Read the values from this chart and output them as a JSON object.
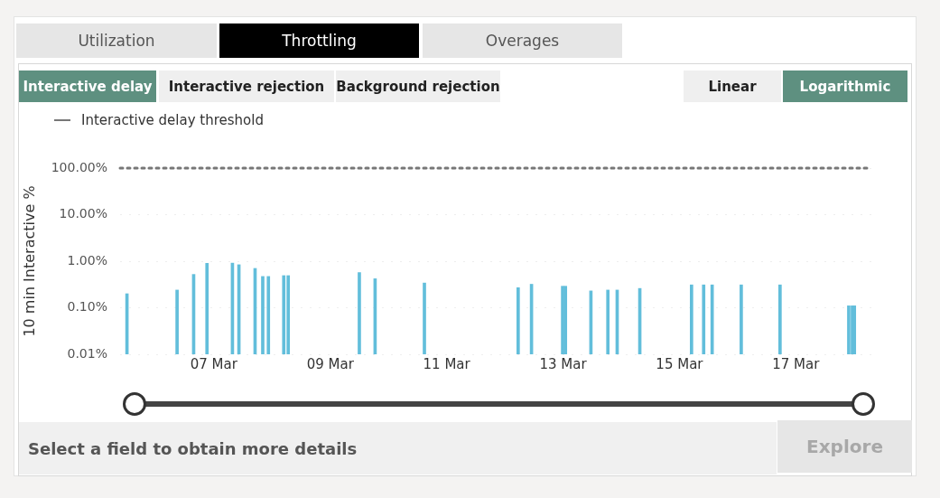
{
  "chart_data": {
    "type": "bar",
    "ylabel": "10 min Interactive %",
    "color": "#62bedb",
    "log": "y",
    "grid": "y",
    "x": [
      "--03-05T12:10",
      "--03-06T08:50",
      "--03-06T15:40",
      "--03-06T21:10",
      "--03-07T07:40",
      "--03-07T10:20",
      "--03-07T17:00",
      "--03-07T20:10",
      "--03-07T22:30",
      "--03-08T04:50",
      "--03-08T06:40",
      "--03-09T12:00",
      "--03-09T18:30",
      "--03-10T14:50",
      "--03-12T05:30",
      "--03-12T11:00",
      "--03-12T23:50",
      "--03-13T01:00",
      "--03-13T11:30",
      "--03-13T18:30",
      "--03-13T22:20",
      "--03-14T07:40",
      "--03-15T05:00",
      "--03-15T10:00",
      "--03-15T13:30",
      "--03-16T01:30",
      "--03-16T17:30",
      "--03-17T21:50",
      "--03-17T23:20",
      "--03-18T00:10"
    ],
    "values": [
      0.2,
      0.24,
      0.52,
      0.9,
      0.91,
      0.84,
      0.7,
      0.47,
      0.47,
      0.49,
      0.49,
      0.57,
      0.42,
      0.34,
      0.27,
      0.32,
      0.29,
      0.29,
      0.23,
      0.24,
      0.24,
      0.26,
      0.31,
      0.31,
      0.31,
      0.31,
      0.31,
      0.11,
      0.11,
      0.11
    ],
    "xlim": [
      "--03-05T09:20",
      "--03-18T07:10"
    ],
    "xticks": [
      {
        "value": "--03-07",
        "label": "07 Mar"
      },
      {
        "value": "--03-09",
        "label": "09 Mar"
      },
      {
        "value": "--03-11",
        "label": "11 Mar"
      },
      {
        "value": "--03-13",
        "label": "13 Mar"
      },
      {
        "value": "--03-15",
        "label": "15 Mar"
      },
      {
        "value": "--03-17",
        "label": "17 Mar"
      }
    ],
    "ylim": [
      0.01,
      100
    ],
    "yticks": [
      {
        "value": 0.01,
        "label": "0.01%"
      },
      {
        "value": 0.1,
        "label": "0.10%"
      },
      {
        "value": 1,
        "label": "1.00%"
      },
      {
        "value": 10,
        "label": "10.00%"
      },
      {
        "value": 100,
        "label": "100.00%"
      }
    ],
    "ref_lines": [
      {
        "axis": "y",
        "value": 100,
        "label": "Interactive delay threshold",
        "color": "#777777",
        "line_style": "dotted"
      }
    ],
    "annotations": [
      "Utilization",
      "Throttling",
      "Overages",
      "Interactive delay",
      "Interactive rejection",
      "Background rejection",
      "Linear",
      "Logarithmic",
      "Select a field to obtain more details",
      "Explore"
    ]
  }
}
